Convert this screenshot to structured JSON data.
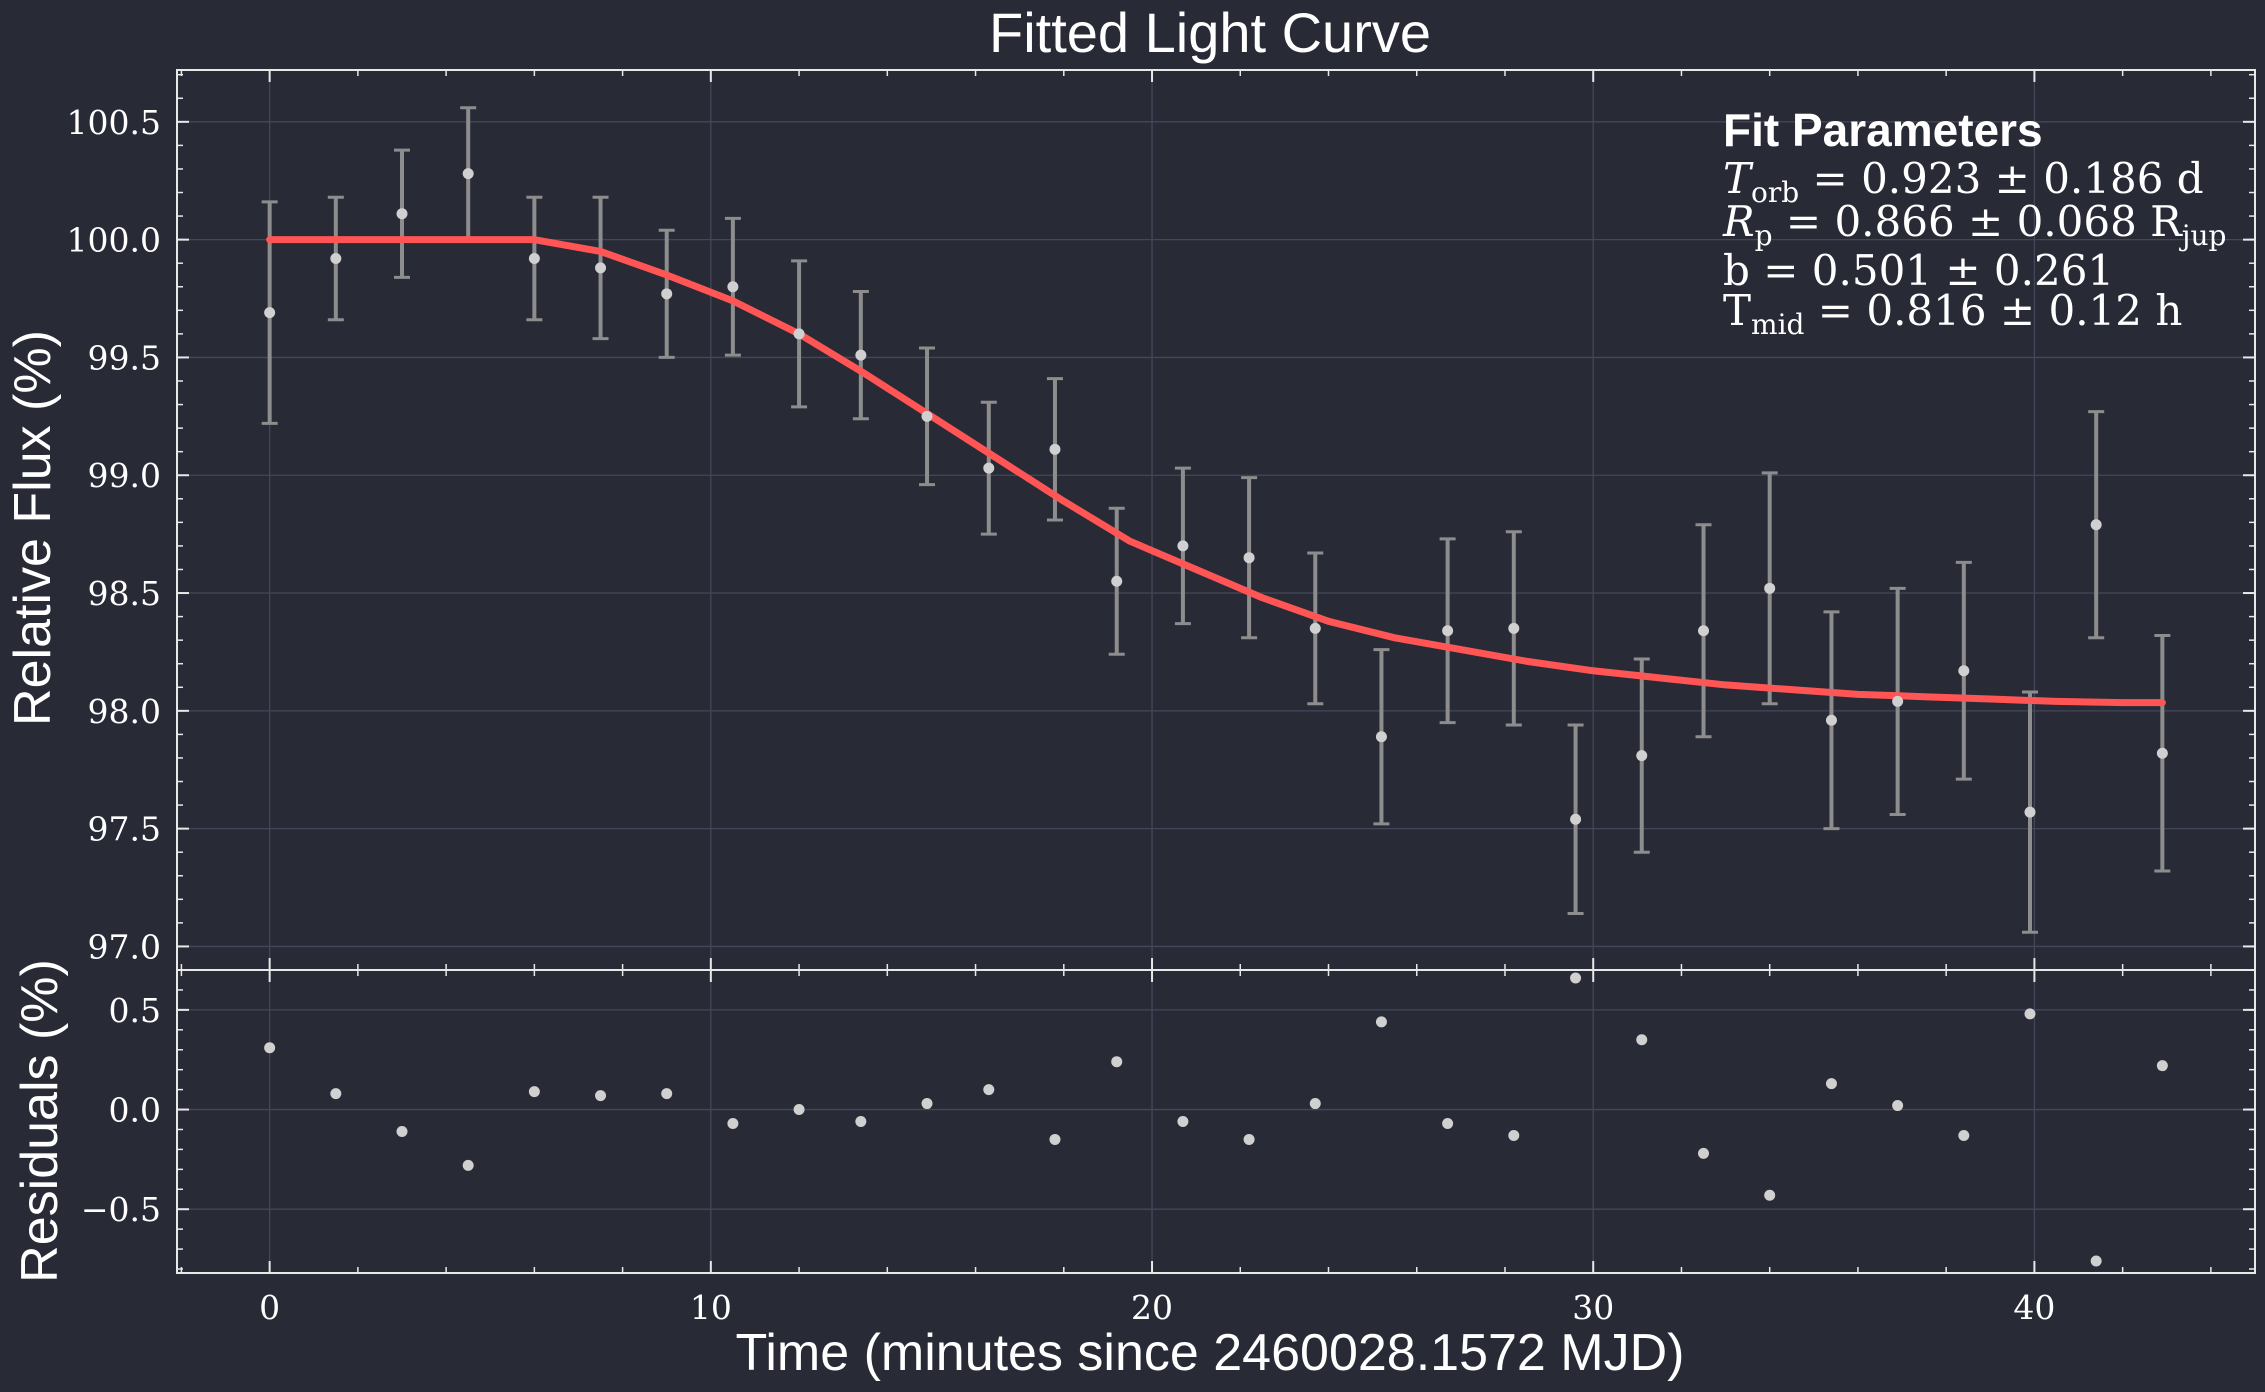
{
  "colors": {
    "background": "#282a36",
    "grid": "#44475a",
    "data": "#d0d0d0",
    "errorbar": "#8d8d8d",
    "model": "#ff5555",
    "text": "#ffffff"
  },
  "chart_data": {
    "type": "scatter",
    "title": "Fitted Light Curve",
    "xlabel": "Time (minutes since 2460028.1572 MJD)",
    "ylabel": "Relative Flux (%)",
    "residual_ylabel": "Residuals (%)",
    "xlim": [
      -2.1,
      45.0
    ],
    "ylim": [
      96.9,
      100.72
    ],
    "residual_ylim": [
      -0.82,
      0.7
    ],
    "x_ticks": [
      0,
      10,
      20,
      30,
      40
    ],
    "x_tick_labels": [
      "0",
      "10",
      "20",
      "30",
      "40"
    ],
    "y_ticks": [
      97.0,
      97.5,
      98.0,
      98.5,
      99.0,
      99.5,
      100.0,
      100.5
    ],
    "y_tick_labels": [
      "97.0",
      "97.5",
      "98.0",
      "98.5",
      "99.0",
      "99.5",
      "100.0",
      "100.5"
    ],
    "residual_y_ticks": [
      -0.5,
      0.0,
      0.5
    ],
    "residual_y_tick_labels": [
      "−0.5",
      "0.0",
      "0.5"
    ],
    "grid": true,
    "series": [
      {
        "type": "errorbar",
        "x": [
          0,
          1.5,
          3.0,
          4.5,
          6.0,
          7.5,
          9.0,
          10.5,
          12.0,
          13.4,
          14.9,
          16.3,
          17.8,
          19.2,
          20.7,
          22.2,
          23.7,
          25.2,
          26.7,
          28.2,
          29.6,
          31.1,
          32.5,
          34.0,
          35.4,
          36.9,
          38.4,
          39.9,
          41.4,
          42.9
        ],
        "y": [
          99.69,
          99.92,
          100.11,
          100.28,
          99.92,
          99.88,
          99.77,
          99.8,
          99.6,
          99.51,
          99.25,
          99.03,
          99.11,
          98.55,
          98.7,
          98.65,
          98.35,
          97.89,
          98.34,
          98.35,
          97.54,
          97.81,
          98.34,
          98.52,
          97.96,
          98.04,
          98.17,
          97.57,
          98.79,
          97.82
        ],
        "yerr": [
          0.47,
          0.26,
          0.27,
          0.28,
          0.26,
          0.3,
          0.27,
          0.29,
          0.31,
          0.27,
          0.29,
          0.28,
          0.3,
          0.31,
          0.33,
          0.34,
          0.32,
          0.37,
          0.39,
          0.41,
          0.4,
          0.41,
          0.45,
          0.49,
          0.46,
          0.48,
          0.46,
          0.51,
          0.48,
          0.5
        ]
      },
      {
        "type": "line",
        "x": [
          0,
          3,
          6,
          7.5,
          9,
          10.5,
          12,
          13.5,
          15,
          16.5,
          18,
          19.5,
          21,
          22.5,
          24,
          25.5,
          27,
          28.5,
          30,
          31.5,
          33,
          34.5,
          36,
          37.5,
          39,
          40.5,
          42,
          42.9
        ],
        "y": [
          100.0,
          100.0,
          100.0,
          99.95,
          99.85,
          99.74,
          99.6,
          99.43,
          99.25,
          99.07,
          98.89,
          98.72,
          98.6,
          98.48,
          98.38,
          98.31,
          98.26,
          98.21,
          98.17,
          98.14,
          98.11,
          98.09,
          98.07,
          98.06,
          98.05,
          98.04,
          98.035,
          98.035
        ]
      },
      {
        "type": "residuals",
        "x": [
          0,
          1.5,
          3.0,
          4.5,
          6.0,
          7.5,
          9.0,
          10.5,
          12.0,
          13.4,
          14.9,
          16.3,
          17.8,
          19.2,
          20.7,
          22.2,
          23.7,
          25.2,
          26.7,
          28.2,
          29.6,
          31.1,
          32.5,
          34.0,
          35.4,
          36.9,
          38.4,
          39.9,
          41.4,
          42.9
        ],
        "y": [
          0.31,
          0.08,
          -0.11,
          -0.28,
          0.09,
          0.07,
          0.08,
          -0.07,
          0.0,
          -0.06,
          0.03,
          0.1,
          -0.15,
          0.24,
          -0.06,
          -0.15,
          0.03,
          0.44,
          -0.07,
          -0.13,
          0.66,
          0.35,
          -0.22,
          -0.43,
          0.13,
          0.02,
          -0.13,
          0.48,
          -0.76,
          0.22
        ]
      }
    ],
    "fit_parameters": {
      "heading": "Fit Parameters",
      "legend_position": "top-right",
      "lines": [
        {
          "symbol": "T",
          "sub": "orb",
          "italic": true,
          "value": " = 0.923 ± 0.186 d"
        },
        {
          "symbol": "R",
          "sub": "p",
          "italic": true,
          "value": " = 0.866 ± 0.068 R",
          "value_sub": "jup"
        },
        {
          "symbol": "b",
          "sub": "",
          "italic": false,
          "value": " = 0.501 ± 0.261"
        },
        {
          "symbol": "T",
          "sub": "mid",
          "italic": false,
          "value": " = 0.816 ± 0.12 h"
        }
      ]
    }
  }
}
